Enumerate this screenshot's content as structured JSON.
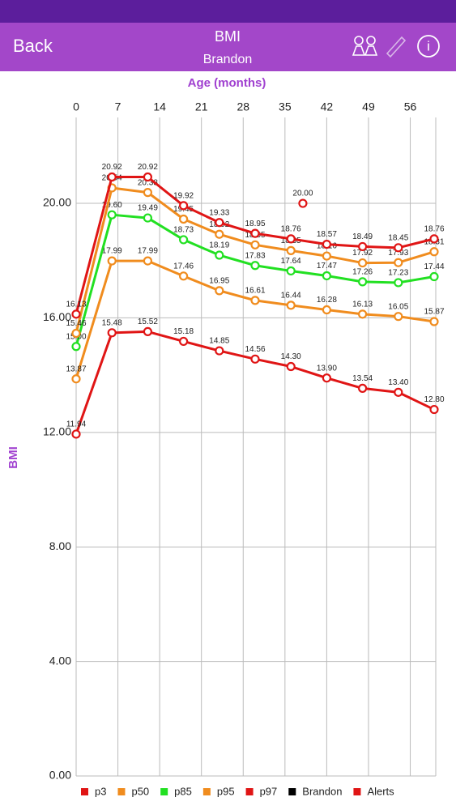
{
  "header": {
    "back": "Back",
    "title": "BMI",
    "subtitle": "Brandon"
  },
  "chart_data": {
    "type": "line",
    "xlabel": "Age (months)",
    "ylabel": "BMI",
    "x": [
      0,
      6,
      12,
      18,
      24,
      30,
      36,
      42,
      48,
      54,
      60
    ],
    "xlim": [
      0,
      60
    ],
    "xticks": [
      0,
      7,
      14,
      21,
      28,
      35,
      42,
      49,
      56
    ],
    "ylim": [
      0,
      23
    ],
    "yticks": [
      {
        "value": 0,
        "label": "0.00"
      },
      {
        "value": 4,
        "label": "4.00"
      },
      {
        "value": 8,
        "label": "8.00"
      },
      {
        "value": 12,
        "label": "12.00"
      },
      {
        "value": 16,
        "label": "16.00"
      },
      {
        "value": 20,
        "label": "20.00"
      }
    ],
    "grid": true,
    "legend": "bottom",
    "series": [
      {
        "name": "p3",
        "color": "#e01515",
        "values": [
          11.94,
          15.48,
          15.52,
          15.18,
          14.85,
          14.56,
          14.3,
          13.9,
          13.54,
          13.4,
          12.8
        ],
        "value_labels": [
          "11.94",
          "15.48",
          "15.52",
          "15.18",
          "14.85",
          "14.56",
          "14.30",
          "13.90",
          "13.54",
          "13.40",
          "12.80"
        ]
      },
      {
        "name": "p50",
        "color": "#f08c1e",
        "values": [
          13.87,
          17.99,
          17.99,
          17.46,
          16.95,
          16.61,
          16.44,
          16.28,
          16.13,
          16.05,
          15.87
        ],
        "value_labels": [
          "13.87",
          "17.99",
          "17.99",
          "17.46",
          "16.95",
          "16.61",
          "16.44",
          "16.28",
          "16.13",
          "16.05",
          "15.87"
        ]
      },
      {
        "name": "p85",
        "color": "#22e022",
        "values": [
          15.0,
          19.6,
          19.49,
          18.73,
          18.19,
          17.83,
          17.64,
          17.47,
          17.26,
          17.23,
          17.44
        ],
        "value_labels": [
          "15.00",
          "19.60",
          "19.49",
          "18.73",
          "18.19",
          "17.83",
          "17.64",
          "17.47",
          "17.26",
          "17.23",
          "17.44"
        ]
      },
      {
        "name": "p95",
        "color": "#f08c1e",
        "values": [
          15.46,
          20.54,
          20.38,
          19.45,
          18.92,
          18.55,
          18.35,
          18.16,
          17.92,
          17.93,
          18.31
        ],
        "value_labels": [
          "15.46",
          "20.54",
          "20.38",
          "19.45",
          "18.92",
          "18.55",
          "18.35",
          "18.16",
          "17.92",
          "17.93",
          "18.31"
        ]
      },
      {
        "name": "p97",
        "color": "#e01515",
        "values": [
          16.13,
          20.92,
          20.92,
          19.92,
          19.33,
          18.95,
          18.76,
          18.57,
          18.49,
          18.45,
          18.76
        ],
        "value_labels": [
          "16.13",
          "20.92",
          "20.92",
          "19.92",
          "19.33",
          "18.95",
          "18.76",
          "18.57",
          "18.49",
          "18.45",
          "18.76"
        ]
      },
      {
        "name": "Brandon",
        "color": "#000000",
        "x": [],
        "values": [],
        "value_labels": []
      },
      {
        "name": "Alerts",
        "color": "#e01515",
        "x": [
          38
        ],
        "values": [
          20.0
        ],
        "value_labels": [
          "20.00"
        ]
      }
    ]
  }
}
